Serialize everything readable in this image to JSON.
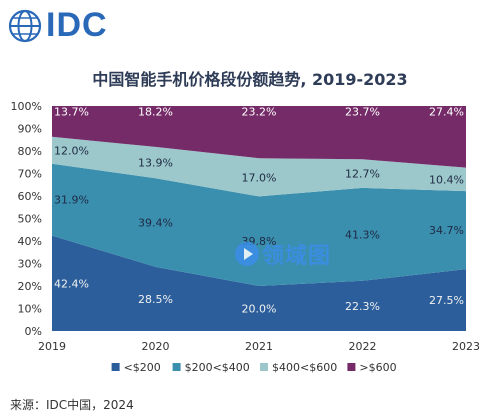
{
  "brand": {
    "name": "IDC",
    "icon": "globe-icon",
    "color": "#2a69b8"
  },
  "chart_data": {
    "type": "area",
    "stacked": true,
    "percent": true,
    "title": "中国智能手机价格段份额趋势, 2019-2023",
    "x": [
      "2019",
      "2020",
      "2021",
      "2022",
      "2023"
    ],
    "yticks": [
      "0%",
      "10%",
      "20%",
      "30%",
      "40%",
      "50%",
      "60%",
      "70%",
      "80%",
      "90%",
      "100%"
    ],
    "ylim": [
      0,
      100
    ],
    "legend_position": "bottom",
    "series": [
      {
        "name": "<$200",
        "color": "#2b5e9b",
        "values": [
          42.4,
          28.5,
          20.0,
          22.3,
          27.5
        ],
        "labels": [
          "42.4%",
          "28.5%",
          "20.0%",
          "22.3%",
          "27.5%"
        ],
        "label_color": "#f1f1f1"
      },
      {
        "name": "$200<$400",
        "color": "#3a8fae",
        "values": [
          31.9,
          39.4,
          39.8,
          41.3,
          34.7
        ],
        "labels": [
          "31.9%",
          "39.4%",
          "39.8%",
          "41.3%",
          "34.7%"
        ],
        "label_color": "#1f2a44"
      },
      {
        "name": "$400<$600",
        "color": "#9cc8cb",
        "values": [
          12.0,
          13.9,
          17.0,
          12.7,
          10.4
        ],
        "labels": [
          "12.0%",
          "13.9%",
          "17.0%",
          "12.7%",
          "10.4%"
        ],
        "label_color": "#1f2a44"
      },
      {
        "name": ">$600",
        "color": "#742b67",
        "values": [
          13.7,
          18.2,
          23.2,
          23.7,
          27.4
        ],
        "labels": [
          "13.7%",
          "18.2%",
          "23.2%",
          "23.7%",
          "27.4%"
        ],
        "label_color": "#ffffff"
      }
    ]
  },
  "source": "来源：IDC中国，2024",
  "watermark": {
    "text": "领域图",
    "icon": "play-icon"
  }
}
